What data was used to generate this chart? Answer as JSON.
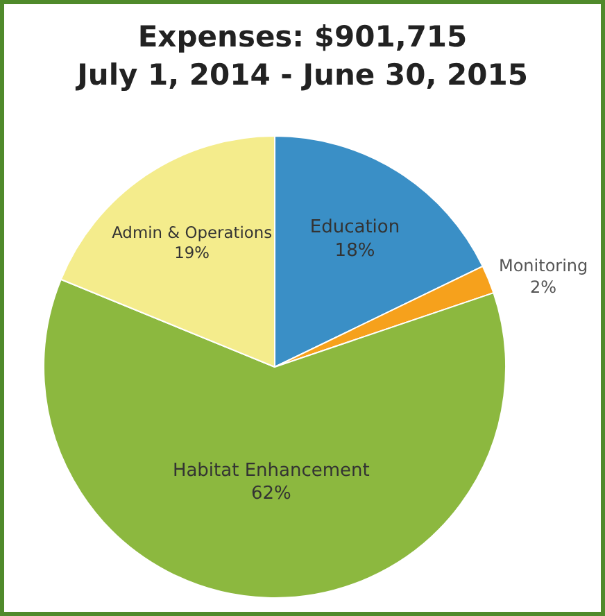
{
  "chart_data": {
    "type": "pie",
    "title": "Expenses: $901,715",
    "subtitle": "July 1, 2014 - June 30, 2015",
    "categories": [
      "Education",
      "Monitoring",
      "Habitat Enhancement",
      "Admin & Operations"
    ],
    "values": [
      18,
      2,
      62,
      19
    ],
    "value_labels": [
      "18%",
      "2%",
      "62%",
      "19%"
    ],
    "colors": [
      "#3a8fc6",
      "#f6a11c",
      "#8cb83f",
      "#f4ec8c"
    ],
    "legend": false
  }
}
